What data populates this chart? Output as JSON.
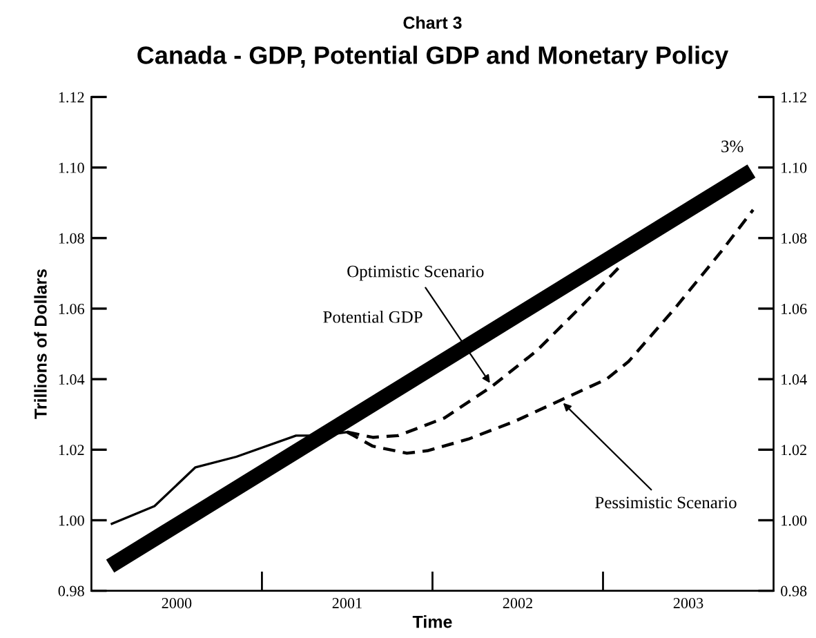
{
  "chart_data": {
    "type": "line",
    "subtitle": "Chart 3",
    "title": "Canada - GDP, Potential GDP and Monetary Policy",
    "xlabel": "Time",
    "ylabel": "Trillions of Dollars",
    "xlim": [
      1999.5,
      2003.5
    ],
    "xticks": [
      {
        "value": 2000,
        "label": "2000"
      },
      {
        "value": 2000.5,
        "label": null
      },
      {
        "value": 2001,
        "label": "2001"
      },
      {
        "value": 2001.5,
        "label": null
      },
      {
        "value": 2002,
        "label": "2002"
      },
      {
        "value": 2002.5,
        "label": null
      },
      {
        "value": 2003,
        "label": "2003"
      }
    ],
    "ylim": [
      0.98,
      1.12
    ],
    "yticks": [
      {
        "value": 0.98,
        "label": "0.98"
      },
      {
        "value": 1.0,
        "label": "1.00"
      },
      {
        "value": 1.02,
        "label": "1.02"
      },
      {
        "value": 1.04,
        "label": "1.04"
      },
      {
        "value": 1.06,
        "label": "1.06"
      },
      {
        "value": 1.08,
        "label": "1.08"
      },
      {
        "value": 1.1,
        "label": "1.10"
      },
      {
        "value": 1.12,
        "label": "1.12"
      }
    ],
    "y2lim": [
      0.98,
      1.12
    ],
    "y2ticks": [
      {
        "value": 0.98,
        "label": "0.98"
      },
      {
        "value": 1.0,
        "label": "1.00"
      },
      {
        "value": 1.02,
        "label": "1.02"
      },
      {
        "value": 1.04,
        "label": "1.04"
      },
      {
        "value": 1.06,
        "label": "1.06"
      },
      {
        "value": 1.08,
        "label": "1.08"
      },
      {
        "value": 1.1,
        "label": "1.10"
      },
      {
        "value": 1.12,
        "label": "1.12"
      }
    ],
    "grid": false,
    "legend": false,
    "series": [
      {
        "color": "#000000",
        "line_style": "solid",
        "x": [
          1999.62,
          1999.87,
          2000.11,
          2000.35,
          2000.7,
          2000.85,
          2001.0
        ],
        "values": [
          0.999,
          1.004,
          1.015,
          1.018,
          1.024,
          1.024,
          1.025
        ]
      },
      {
        "name": "Potential GDP",
        "color": "#000000",
        "line_style": "solid",
        "x": [
          1999.61,
          2003.37
        ],
        "values": [
          0.987,
          1.099
        ]
      },
      {
        "color": "#000000",
        "line_style": "dashed",
        "x": [
          2001.0,
          2001.15,
          2001.3,
          2001.57,
          2001.85,
          2002.11,
          2002.38,
          2002.54,
          2002.62
        ],
        "values": [
          1.025,
          1.0235,
          1.024,
          1.029,
          1.038,
          1.048,
          1.061,
          1.069,
          1.073
        ]
      },
      {
        "color": "#000000",
        "line_style": "dashed",
        "x": [
          2001.0,
          2001.15,
          2001.35,
          2001.47,
          2001.71,
          2001.98,
          2002.25,
          2002.52,
          2002.65,
          2002.92,
          2003.19,
          2003.38
        ],
        "values": [
          1.025,
          1.021,
          1.019,
          1.0197,
          1.023,
          1.028,
          1.034,
          1.04,
          1.045,
          1.06,
          1.076,
          1.088
        ]
      }
    ],
    "annotations": [
      {
        "text": "Optimistic Scenario",
        "x": 2001.85,
        "y": 1.038
      },
      {
        "text": "Pessimistic Scenario",
        "x": 2002.25,
        "y": 1.034
      },
      {
        "text": "3%",
        "x": 2003.37,
        "y": 1.099
      }
    ]
  }
}
